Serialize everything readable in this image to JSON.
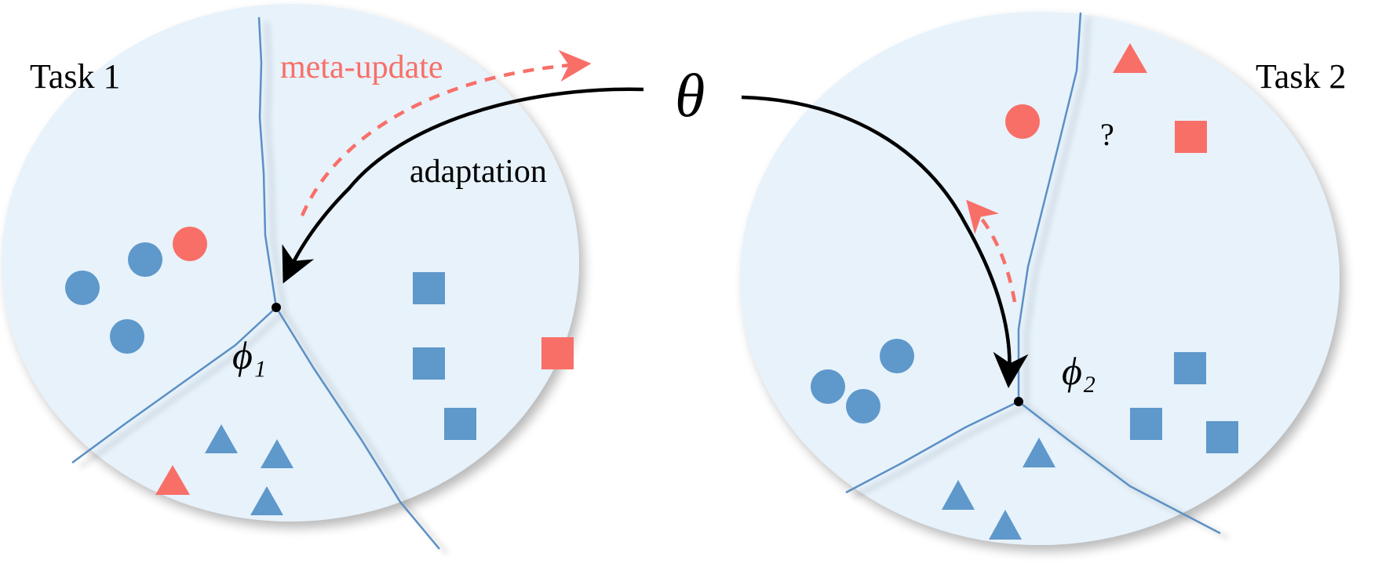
{
  "labels": {
    "task1": "Task 1",
    "task2": "Task 2",
    "theta": "θ",
    "meta_update": "meta-update",
    "adaptation": "adaptation",
    "phi1": "ϕ₁",
    "phi2": "ϕ₂",
    "question": "?"
  },
  "colors": {
    "region_fill": "#e7f2fb",
    "boundary": "#5b8fc4",
    "class_blue": "#5f98ca",
    "class_red": "#f86f68",
    "meta_update_arrow": "#f86f68",
    "adaptation_arrow": "#000000"
  },
  "task1": {
    "blue_circles": 3,
    "red_circles": 1,
    "blue_squares": 3,
    "red_squares": 1,
    "blue_triangles": 3,
    "red_triangles": 1
  },
  "task2": {
    "blue_circles": 3,
    "red_circles": 1,
    "blue_squares": 3,
    "red_squares": 1,
    "blue_triangles": 3,
    "red_triangles": 1
  }
}
